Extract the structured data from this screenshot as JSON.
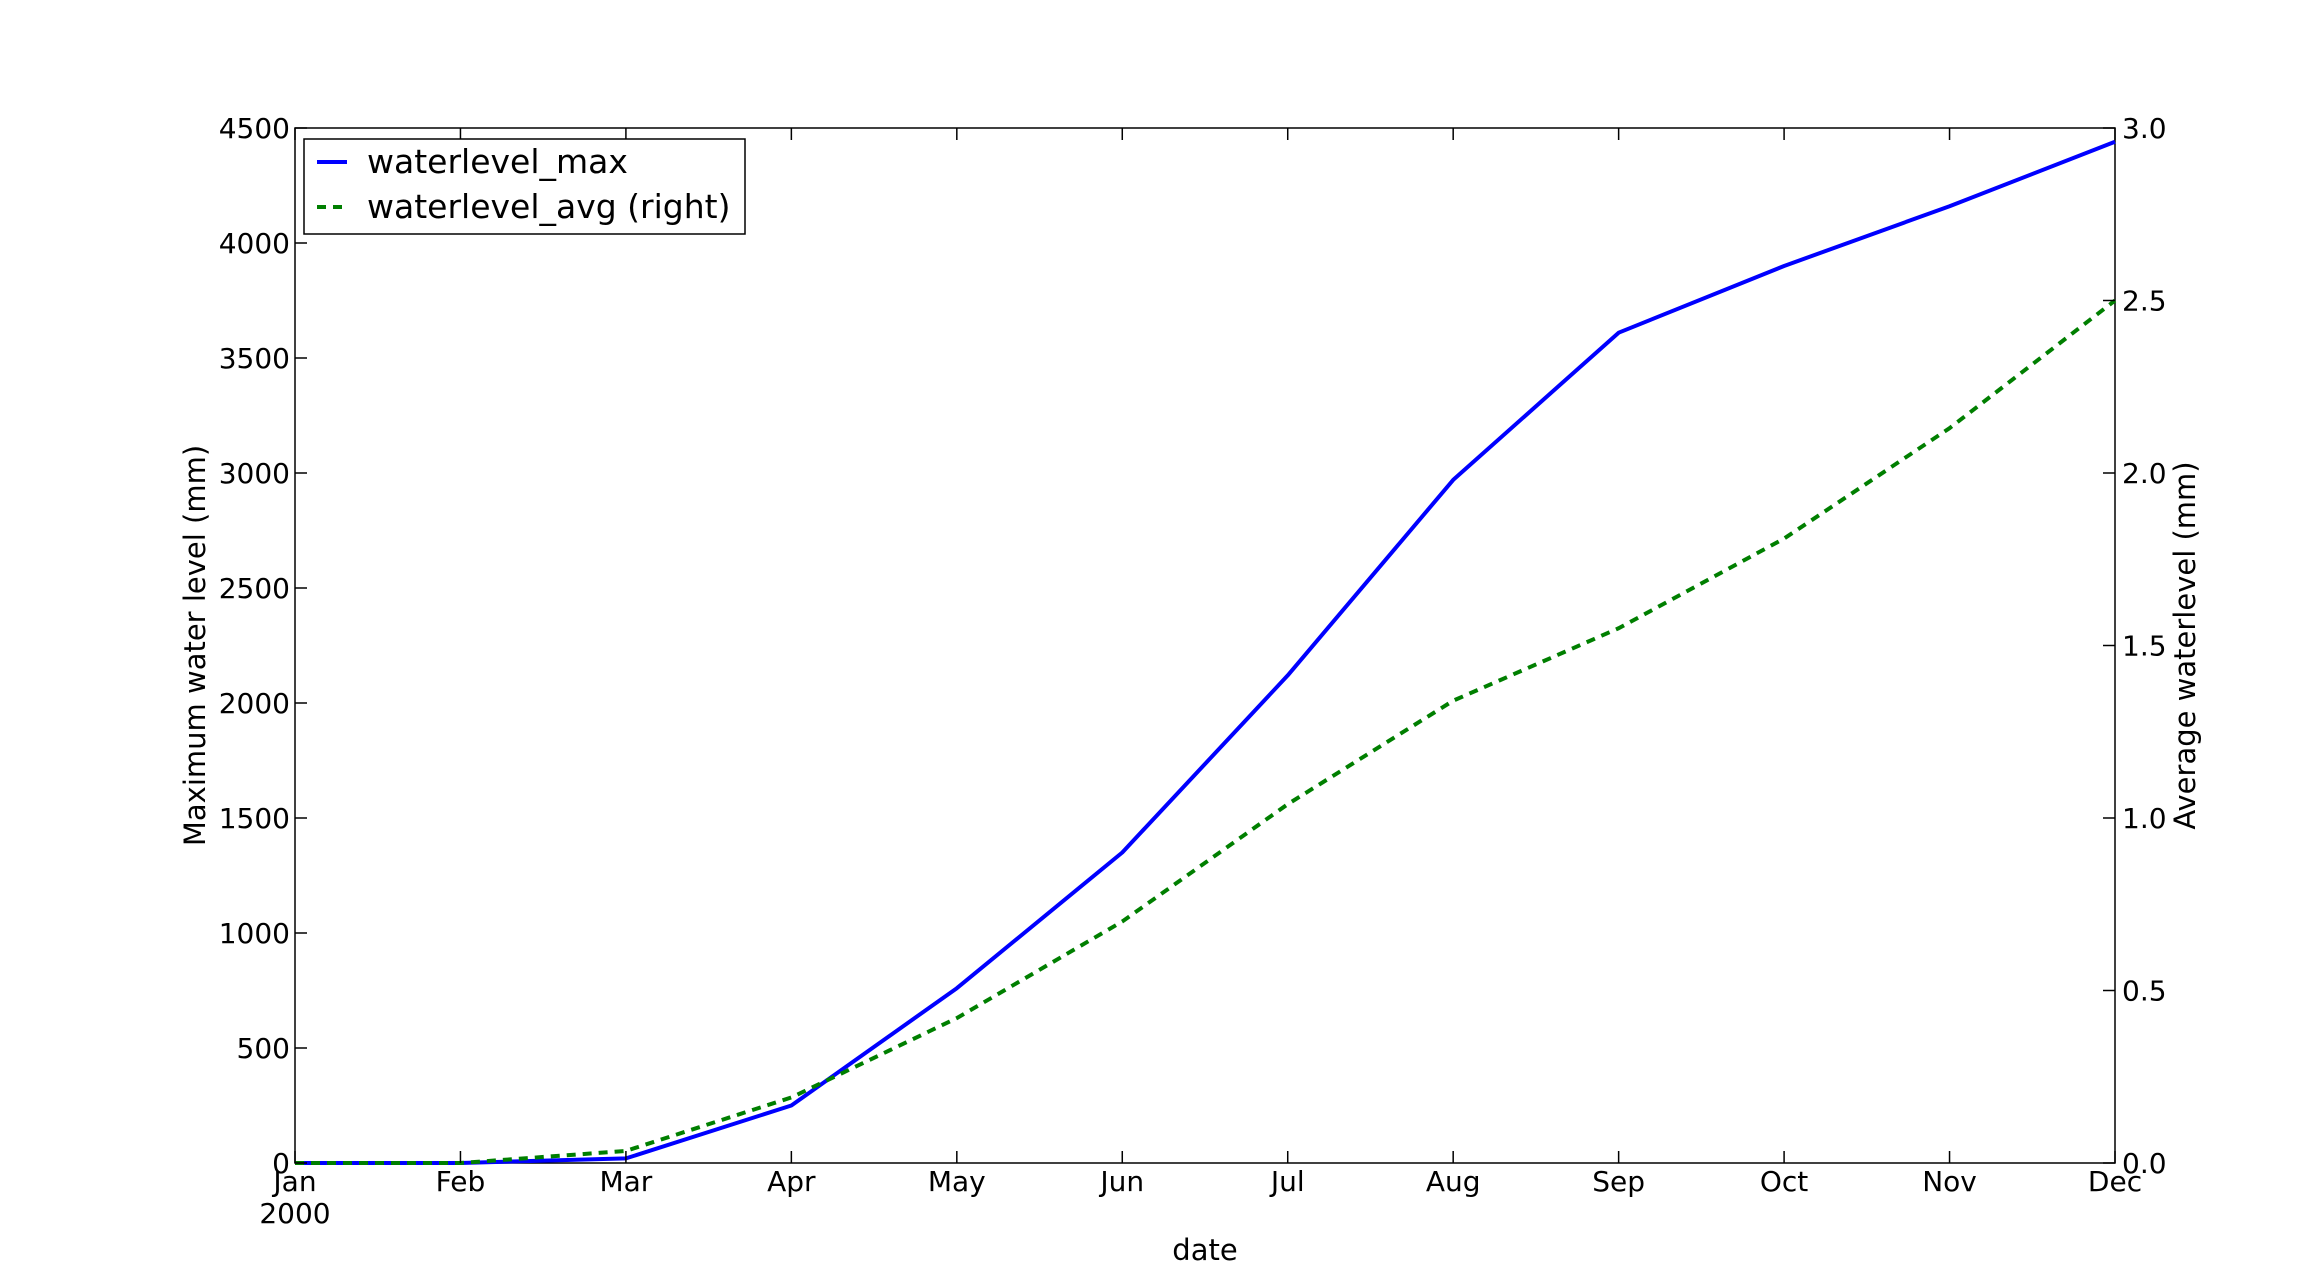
{
  "chart_data": {
    "type": "line",
    "xlabel": "date",
    "ylabel_left": "Maximum water level (mm)",
    "ylabel_right": "Average waterlevel (mm)",
    "categories": [
      "Jan",
      "Feb",
      "Mar",
      "Apr",
      "May",
      "Jun",
      "Jul",
      "Aug",
      "Sep",
      "Oct",
      "Nov",
      "Dec"
    ],
    "x_year_label": "2000",
    "ylim_left": [
      0,
      4500
    ],
    "ylim_right": [
      0,
      3.0
    ],
    "yticks_left": [
      "0",
      "500",
      "1000",
      "1500",
      "2000",
      "2500",
      "3000",
      "3500",
      "4000",
      "4500"
    ],
    "yticks_right": [
      "0.0",
      "0.5",
      "1.0",
      "1.5",
      "2.0",
      "2.5",
      "3.0"
    ],
    "grid": false,
    "legend_position": "top-left",
    "series": [
      {
        "name": "waterlevel_max",
        "axis": "left",
        "color": "#0000ff",
        "style": "solid",
        "values": [
          0,
          0,
          20,
          250,
          760,
          1350,
          2120,
          2970,
          3610,
          3900,
          4160,
          4440
        ]
      },
      {
        "name": "waterlevel_avg (right)",
        "axis": "right",
        "color": "#007f00",
        "style": "dashed",
        "values": [
          0.0,
          0.0,
          0.035,
          0.19,
          0.42,
          0.7,
          1.04,
          1.34,
          1.55,
          1.81,
          2.13,
          2.5
        ]
      }
    ]
  }
}
